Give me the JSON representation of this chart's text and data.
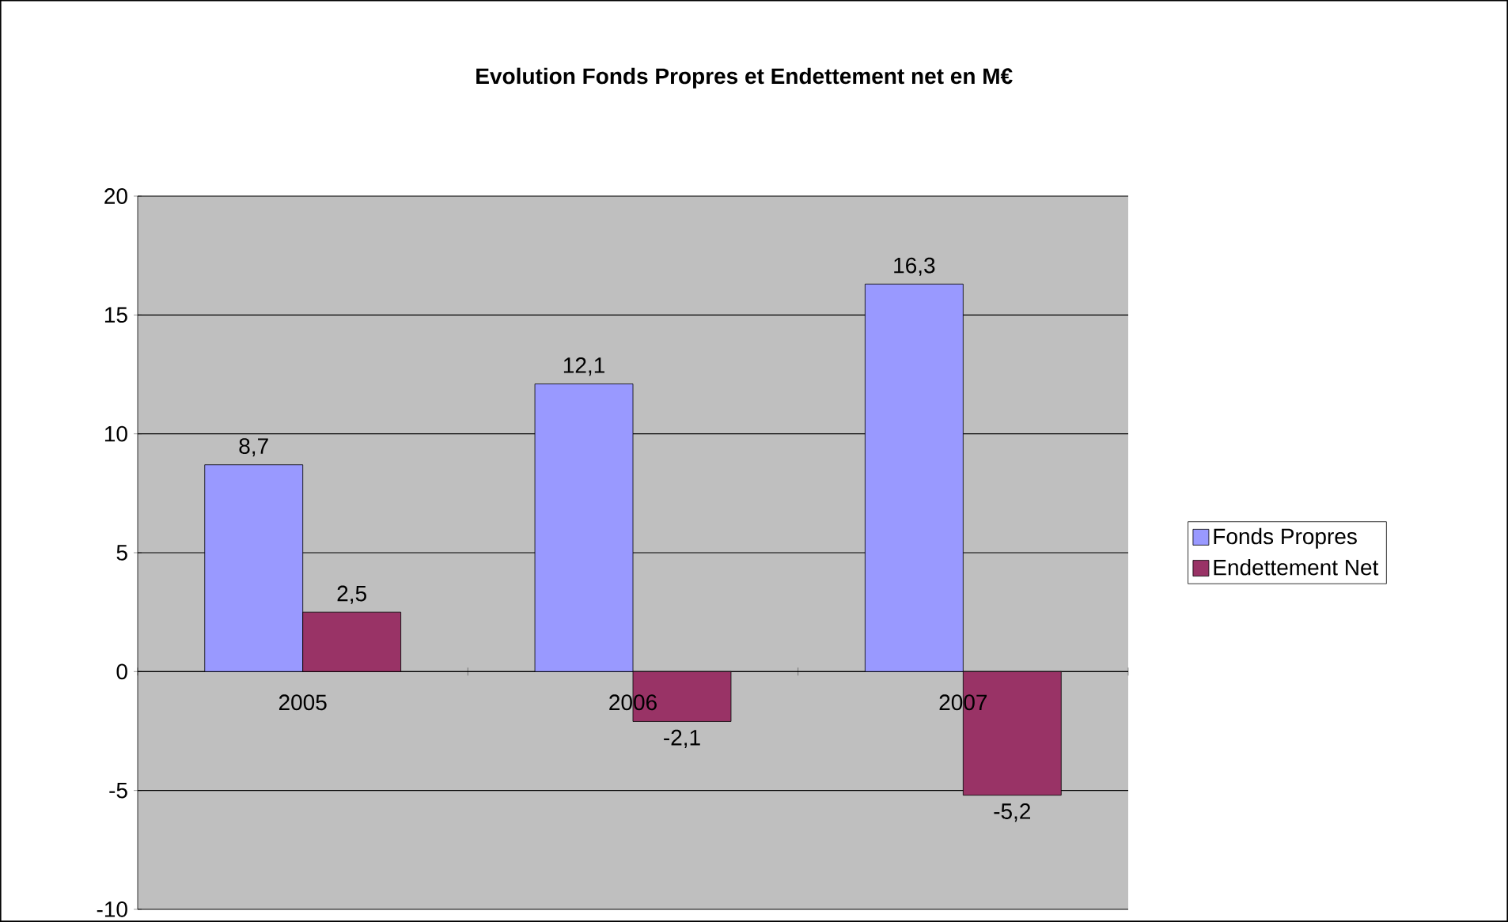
{
  "chart_data": {
    "type": "bar",
    "title": "Evolution Fonds Propres et Endettement net en M€",
    "categories": [
      "2005",
      "2006",
      "2007"
    ],
    "series": [
      {
        "name": "Fonds Propres",
        "color": "#9999ff",
        "values": [
          8.7,
          12.1,
          16.3
        ],
        "value_labels": [
          "8,7",
          "12,1",
          "16,3"
        ]
      },
      {
        "name": "Endettement Net",
        "color": "#993366",
        "values": [
          2.5,
          -2.1,
          -5.2
        ],
        "value_labels": [
          "2,5",
          "-2,1",
          "-5,2"
        ]
      }
    ],
    "ylim": [
      -10,
      20
    ],
    "yticks": [
      -10,
      -5,
      0,
      5,
      10,
      15,
      20
    ],
    "grid": "y",
    "legend": "right"
  }
}
